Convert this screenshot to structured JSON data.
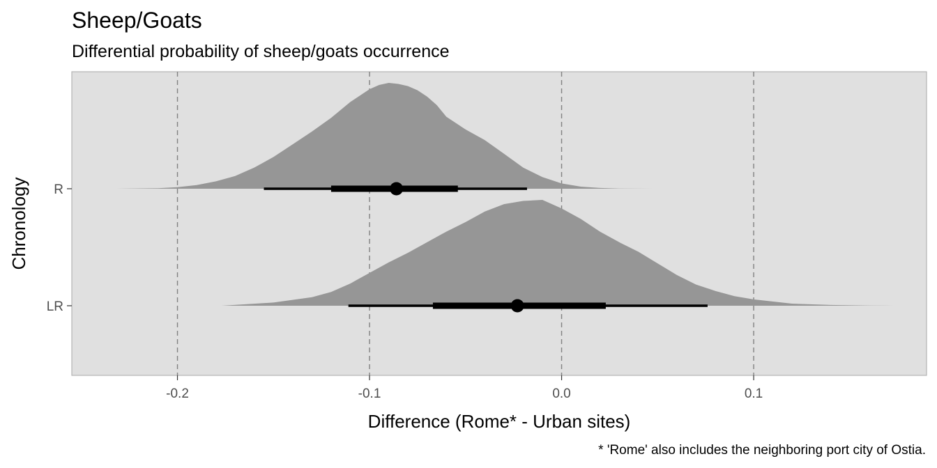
{
  "chart_data": {
    "type": "halfeye",
    "title": "Sheep/Goats",
    "subtitle": "Differential probability of sheep/goats occurrence",
    "xlabel": "Difference (Rome* - Urban sites)",
    "ylabel": "Chronology",
    "caption": "* 'Rome' also includes the neighboring port city of Ostia.",
    "xlim": [
      -0.255,
      0.19
    ],
    "x_ticks": [
      -0.2,
      -0.1,
      0.0,
      0.1
    ],
    "x_tick_labels": [
      "-0.2",
      "-0.1",
      "0.0",
      "0.1"
    ],
    "reference_lines": [
      -0.2,
      -0.1,
      0.0,
      0.1
    ],
    "categories": [
      "R",
      "LR"
    ],
    "grid": false,
    "colors": {
      "panel_background": "#e0e0e0",
      "density_fill": "#969696",
      "interval": "#000000",
      "reference_line": "#808080"
    },
    "series": [
      {
        "category": "R",
        "median": -0.086,
        "interval_66": [
          -0.12,
          -0.054
        ],
        "interval_95": [
          -0.155,
          -0.018
        ],
        "density": {
          "x": [
            -0.232,
            -0.21,
            -0.2,
            -0.19,
            -0.18,
            -0.17,
            -0.16,
            -0.15,
            -0.14,
            -0.13,
            -0.12,
            -0.11,
            -0.1,
            -0.095,
            -0.09,
            -0.085,
            -0.08,
            -0.075,
            -0.07,
            -0.065,
            -0.06,
            -0.05,
            -0.04,
            -0.03,
            -0.02,
            -0.01,
            0.0,
            0.01,
            0.02,
            0.03,
            0.048
          ],
          "y": [
            0.0,
            0.005,
            0.015,
            0.035,
            0.07,
            0.12,
            0.2,
            0.3,
            0.42,
            0.54,
            0.67,
            0.82,
            0.94,
            0.98,
            1.0,
            0.99,
            0.97,
            0.93,
            0.87,
            0.79,
            0.68,
            0.56,
            0.46,
            0.33,
            0.2,
            0.11,
            0.05,
            0.02,
            0.007,
            0.002,
            0.0
          ]
        }
      },
      {
        "category": "LR",
        "median": -0.023,
        "interval_66": [
          -0.067,
          0.023
        ],
        "interval_95": [
          -0.111,
          0.076
        ],
        "density": {
          "x": [
            -0.177,
            -0.15,
            -0.13,
            -0.12,
            -0.11,
            -0.1,
            -0.09,
            -0.08,
            -0.07,
            -0.06,
            -0.05,
            -0.04,
            -0.03,
            -0.02,
            -0.01,
            0.0,
            0.01,
            0.02,
            0.03,
            0.04,
            0.05,
            0.06,
            0.07,
            0.08,
            0.09,
            0.1,
            0.12,
            0.14,
            0.16,
            0.173
          ],
          "y": [
            0.0,
            0.03,
            0.08,
            0.13,
            0.21,
            0.31,
            0.41,
            0.5,
            0.6,
            0.7,
            0.79,
            0.89,
            0.96,
            0.99,
            1.0,
            0.92,
            0.82,
            0.7,
            0.6,
            0.51,
            0.4,
            0.29,
            0.2,
            0.14,
            0.09,
            0.06,
            0.02,
            0.007,
            0.002,
            0.0
          ]
        }
      }
    ]
  }
}
